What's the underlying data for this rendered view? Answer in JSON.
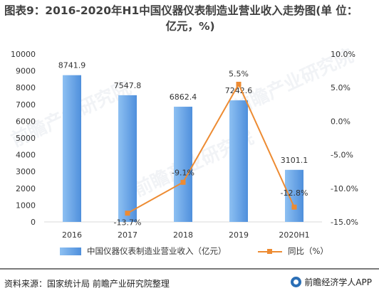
{
  "title_line1": "图表9：2016-2020年H1中国仪器仪表制造业营业收入走势图(单 位：",
  "title_line2": "亿元，%)",
  "watermark": "前瞻产业研究院",
  "legend": {
    "bar_label": "中国仪器仪表制造业营业收入（亿元）",
    "line_label": "同比（%）"
  },
  "footer": {
    "source": "资料来源：国家统计局 前瞻产业研究院整理",
    "brand": "前瞻经济学人APP"
  },
  "colors": {
    "bar_light": "#8dc0f2",
    "bar_dark": "#4f8fdc",
    "line": "#ed8b32",
    "axis": "#d9d9d9",
    "text": "#404040"
  },
  "chart_data": {
    "type": "bar",
    "categories": [
      "2016",
      "2017",
      "2018",
      "2019",
      "2020H1"
    ],
    "series": [
      {
        "name": "中国仪器仪表制造业营业收入（亿元）",
        "type": "bar",
        "axis": "left",
        "values": [
          8741.9,
          7547.8,
          6862.4,
          7242.6,
          3101.1
        ],
        "labels": [
          "8741.9",
          "7547.8",
          "6862.4",
          "7242.6",
          "3101.1"
        ]
      },
      {
        "name": "同比（%）",
        "type": "line",
        "axis": "right",
        "values": [
          null,
          -13.7,
          -9.1,
          5.5,
          -12.8
        ],
        "labels": [
          "",
          "-13.7%",
          "-9.1%",
          "5.5%",
          "-12.8%"
        ]
      }
    ],
    "y_left": {
      "min": 0,
      "max": 10000,
      "ticks": [
        "0",
        "1000",
        "2000",
        "3000",
        "4000",
        "5000",
        "6000",
        "7000",
        "8000",
        "9000",
        "10000"
      ]
    },
    "y_right": {
      "min": -15,
      "max": 10,
      "ticks": [
        "-15.0%",
        "-10.0%",
        "-5.0%",
        "0.0%",
        "5.0%",
        "10.0%"
      ]
    },
    "grid": false,
    "legend_position": "bottom"
  }
}
